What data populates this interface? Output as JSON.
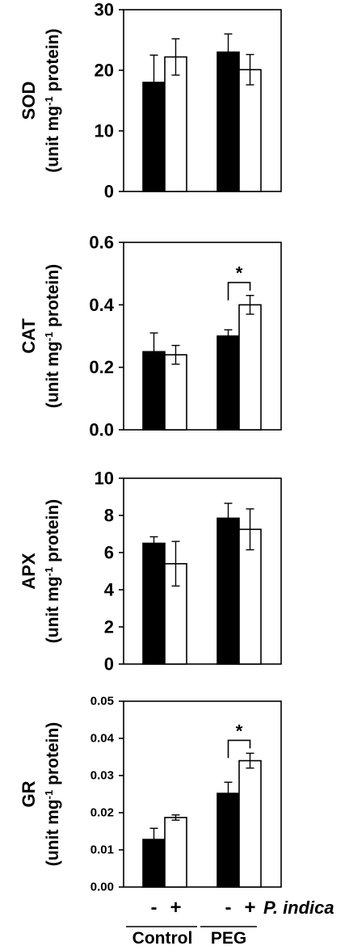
{
  "chart_data": [
    {
      "type": "bar",
      "ylabel_main": "SOD",
      "ylabel_unit": "(unit mg-1 protein)",
      "yticks": [
        "0",
        "10",
        "20",
        "30"
      ],
      "ylim": [
        0,
        30
      ],
      "groups": [
        "Control",
        "PEG"
      ],
      "series": [
        {
          "treatment": "-",
          "fill": "#000000",
          "values": [
            18.0,
            23.0
          ],
          "errors": [
            4.5,
            3.0
          ]
        },
        {
          "treatment": "+",
          "fill": "#ffffff",
          "values": [
            22.2,
            20.1
          ],
          "errors": [
            3.0,
            2.5
          ]
        }
      ],
      "annotations": []
    },
    {
      "type": "bar",
      "ylabel_main": "CAT",
      "ylabel_unit": "(unit mg-1 protein)",
      "yticks": [
        "0.0",
        "0.2",
        "0.4",
        "0.6"
      ],
      "ylim": [
        0,
        0.6
      ],
      "groups": [
        "Control",
        "PEG"
      ],
      "series": [
        {
          "treatment": "-",
          "fill": "#000000",
          "values": [
            0.25,
            0.3
          ],
          "errors": [
            0.06,
            0.02
          ]
        },
        {
          "treatment": "+",
          "fill": "#ffffff",
          "values": [
            0.24,
            0.4
          ],
          "errors": [
            0.03,
            0.03
          ]
        }
      ],
      "annotations": [
        {
          "group": 1,
          "label": "*"
        }
      ]
    },
    {
      "type": "bar",
      "ylabel_main": "APX",
      "ylabel_unit": "(unit mg-1 protein)",
      "yticks": [
        "0",
        "2",
        "4",
        "6",
        "8",
        "10"
      ],
      "ylim": [
        0,
        10
      ],
      "groups": [
        "Control",
        "PEG"
      ],
      "series": [
        {
          "treatment": "-",
          "fill": "#000000",
          "values": [
            6.5,
            7.85
          ],
          "errors": [
            0.35,
            0.8
          ]
        },
        {
          "treatment": "+",
          "fill": "#ffffff",
          "values": [
            5.4,
            7.25
          ],
          "errors": [
            1.2,
            1.1
          ]
        }
      ],
      "annotations": []
    },
    {
      "type": "bar",
      "ylabel_main": "GR",
      "ylabel_unit": "(unit mg-1 protein)",
      "yticks": [
        "0.00",
        "0.01",
        "0.02",
        "0.03",
        "0.04",
        "0.05"
      ],
      "ylim": [
        0,
        0.05
      ],
      "groups": [
        "Control",
        "PEG"
      ],
      "series": [
        {
          "treatment": "-",
          "fill": "#000000",
          "values": [
            0.0128,
            0.0252
          ],
          "errors": [
            0.003,
            0.003
          ]
        },
        {
          "treatment": "+",
          "fill": "#ffffff",
          "values": [
            0.0187,
            0.034
          ],
          "errors": [
            0.0007,
            0.002
          ]
        }
      ],
      "annotations": [
        {
          "group": 1,
          "label": "*"
        }
      ]
    }
  ],
  "x_axis": {
    "treatment_marks": [
      "-",
      "+",
      "-",
      "+"
    ],
    "treatment_label": "P. indica",
    "group_labels": [
      "Control",
      "PEG"
    ]
  }
}
